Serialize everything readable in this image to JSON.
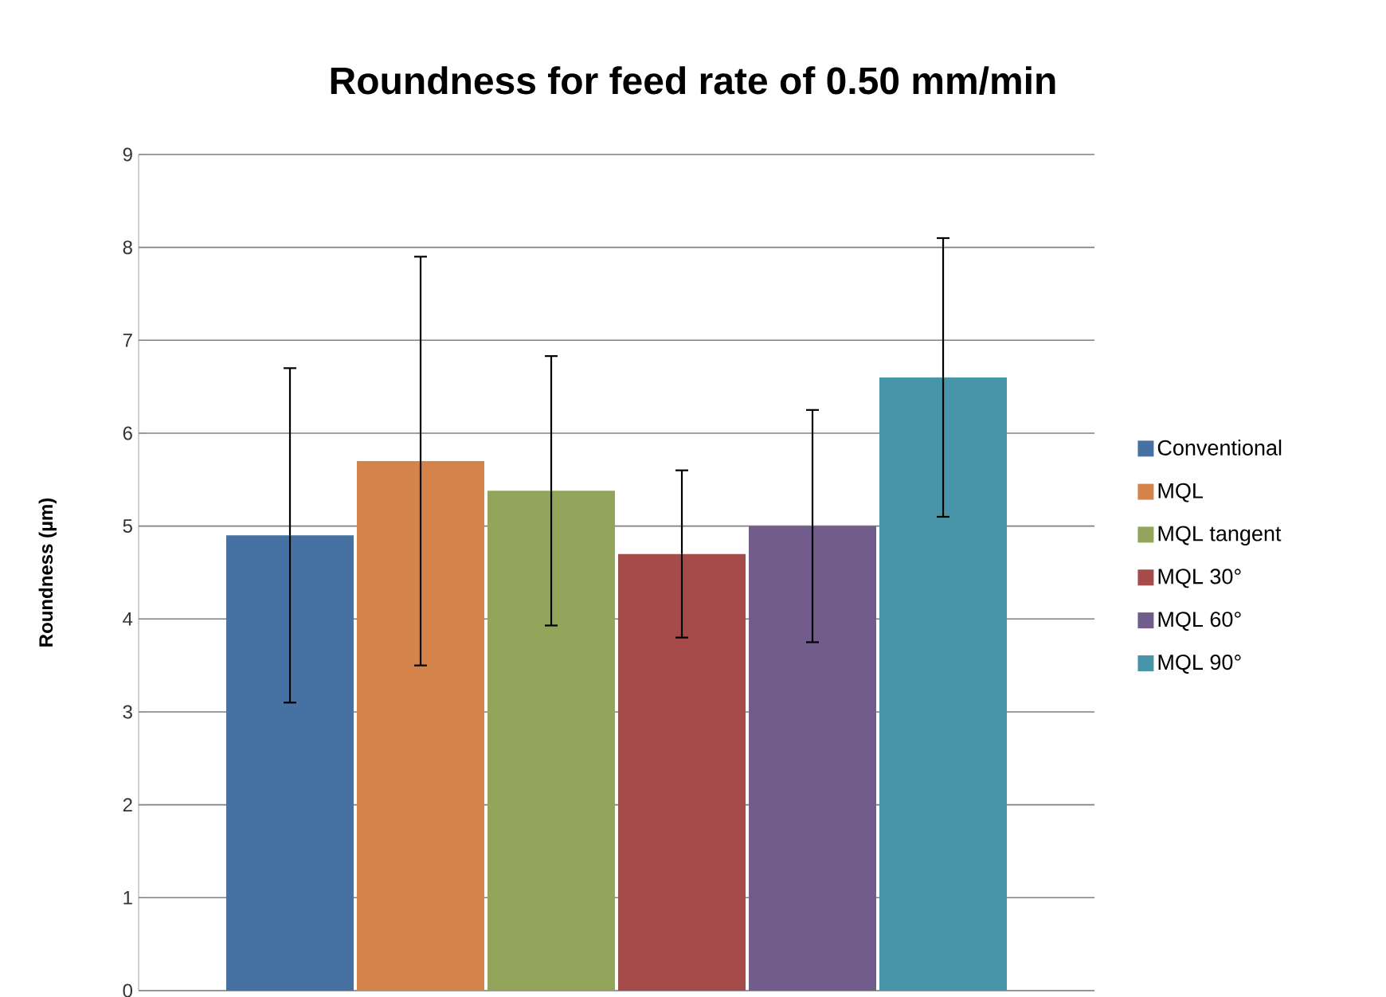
{
  "chart_data": {
    "type": "bar",
    "title": "Roundness for feed rate of 0.50 mm/min",
    "ylabel": "Roundness (µm)",
    "categories": [
      null
    ],
    "series": [
      {
        "name": "Conventional",
        "color": "#4672a3",
        "values": [
          4.9
        ],
        "errors": [
          1.8
        ]
      },
      {
        "name": "MQL",
        "color": "#d4844a",
        "values": [
          5.7
        ],
        "errors": [
          2.2
        ]
      },
      {
        "name": "MQL tangent",
        "color": "#92a55a",
        "values": [
          5.38
        ],
        "errors": [
          1.45
        ]
      },
      {
        "name": "MQL 30°",
        "color": "#a54b4a",
        "values": [
          4.7
        ],
        "errors": [
          0.9
        ]
      },
      {
        "name": "MQL 60°",
        "color": "#725c8c",
        "values": [
          5.0
        ],
        "errors": [
          1.25
        ]
      },
      {
        "name": "MQL 90°",
        "color": "#4894a9",
        "values": [
          6.6
        ],
        "errors": [
          1.5
        ]
      }
    ],
    "ylim": [
      0,
      9
    ],
    "yticks": [
      0,
      1,
      2,
      3,
      4,
      5,
      6,
      7,
      8,
      9
    ],
    "grid": "y",
    "legend": "right"
  }
}
